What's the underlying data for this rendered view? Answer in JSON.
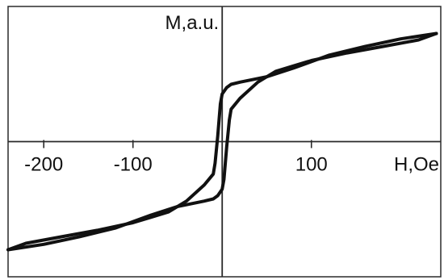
{
  "chart_data": {
    "type": "line",
    "xlabel": "H,Oe",
    "ylabel": "M,a.u.",
    "xlim": [
      -240,
      245
    ],
    "ylim": [
      -1.25,
      1.25
    ],
    "xticks": [
      {
        "value": -200,
        "label": "-200"
      },
      {
        "value": -100,
        "label": "-100"
      },
      {
        "value": 100,
        "label": "100"
      }
    ],
    "grid": false,
    "line_color": "#111111",
    "series": [
      {
        "branch": "descending",
        "x": [
          240,
          200,
          160,
          120,
          80,
          50,
          20,
          10,
          5,
          0,
          -2,
          -5,
          -8,
          -10,
          -20,
          -40,
          -60,
          -80,
          -100,
          -140,
          -180,
          -220,
          -240
        ],
        "y": [
          1.0,
          0.95,
          0.88,
          0.8,
          0.68,
          0.6,
          0.55,
          0.53,
          0.5,
          0.44,
          0.35,
          0.05,
          -0.2,
          -0.3,
          -0.4,
          -0.55,
          -0.65,
          -0.7,
          -0.75,
          -0.82,
          -0.88,
          -0.94,
          -1.0
        ]
      },
      {
        "branch": "ascending",
        "x": [
          -240,
          -200,
          -160,
          -120,
          -80,
          -50,
          -20,
          -10,
          -5,
          0,
          2,
          5,
          8,
          10,
          20,
          40,
          60,
          80,
          100,
          140,
          180,
          220,
          240
        ],
        "y": [
          -1.0,
          -0.95,
          -0.88,
          -0.8,
          -0.68,
          -0.6,
          -0.55,
          -0.53,
          -0.5,
          -0.44,
          -0.35,
          -0.05,
          0.2,
          0.3,
          0.4,
          0.55,
          0.65,
          0.7,
          0.75,
          0.82,
          0.88,
          0.94,
          1.0
        ]
      }
    ]
  }
}
